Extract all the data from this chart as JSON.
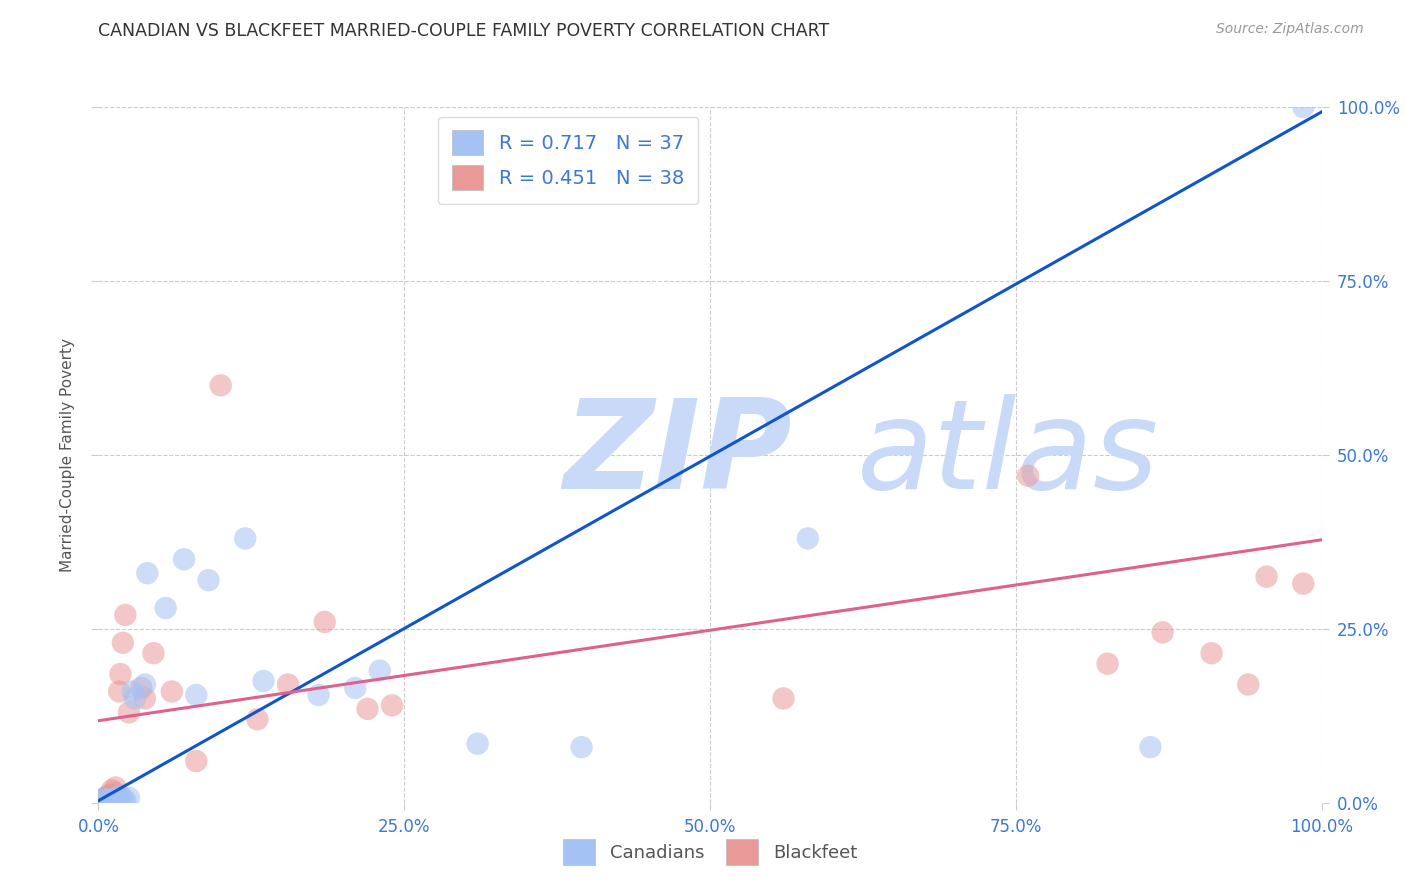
{
  "title": "CANADIAN VS BLACKFEET MARRIED-COUPLE FAMILY POVERTY CORRELATION CHART",
  "source": "Source: ZipAtlas.com",
  "ylabel": "Married-Couple Family Poverty",
  "xlim": [
    0,
    1
  ],
  "ylim": [
    0,
    1
  ],
  "xtick_vals": [
    0,
    0.25,
    0.5,
    0.75,
    1.0
  ],
  "xtick_labels": [
    "0.0%",
    "25.0%",
    "50.0%",
    "75.0%",
    "100.0%"
  ],
  "ytick_vals": [
    0,
    0.25,
    0.5,
    0.75,
    1.0
  ],
  "right_ytick_labels": [
    "0.0%",
    "25.0%",
    "50.0%",
    "75.0%",
    "100.0%"
  ],
  "canadian_color": "#a4c2f4",
  "blackfeet_color": "#ea9999",
  "canadian_line_color": "#1155cc",
  "blackfeet_line_color": "#e06090",
  "legend_R_canadian": "0.717",
  "legend_N_canadian": "37",
  "legend_R_blackfeet": "0.451",
  "legend_N_blackfeet": "38",
  "watermark_zip": "ZIP",
  "watermark_atlas": "atlas",
  "watermark_color": "#c9daf8",
  "background_color": "#ffffff",
  "grid_color": "#cccccc",
  "canadian_x": [
    0.003,
    0.004,
    0.005,
    0.006,
    0.007,
    0.008,
    0.009,
    0.01,
    0.011,
    0.012,
    0.013,
    0.014,
    0.015,
    0.016,
    0.017,
    0.018,
    0.02,
    0.022,
    0.025,
    0.028,
    0.03,
    0.038,
    0.04,
    0.055,
    0.07,
    0.08,
    0.09,
    0.12,
    0.135,
    0.18,
    0.21,
    0.23,
    0.31,
    0.395,
    0.58,
    0.86,
    0.985
  ],
  "canadian_y": [
    0.005,
    0.002,
    0.002,
    0.005,
    0.003,
    0.002,
    0.005,
    0.003,
    0.002,
    0.005,
    0.003,
    0.002,
    0.005,
    0.008,
    0.005,
    0.01,
    0.005,
    0.003,
    0.007,
    0.16,
    0.15,
    0.17,
    0.33,
    0.28,
    0.35,
    0.155,
    0.32,
    0.38,
    0.175,
    0.155,
    0.165,
    0.19,
    0.085,
    0.08,
    0.38,
    0.08,
    1.0
  ],
  "blackfeet_x": [
    0.003,
    0.004,
    0.005,
    0.006,
    0.007,
    0.008,
    0.009,
    0.01,
    0.011,
    0.012,
    0.013,
    0.014,
    0.015,
    0.016,
    0.017,
    0.018,
    0.02,
    0.022,
    0.025,
    0.035,
    0.038,
    0.045,
    0.06,
    0.08,
    0.1,
    0.13,
    0.155,
    0.185,
    0.22,
    0.24,
    0.56,
    0.76,
    0.825,
    0.87,
    0.91,
    0.94,
    0.955,
    0.985
  ],
  "blackfeet_y": [
    0.002,
    0.005,
    0.002,
    0.008,
    0.005,
    0.01,
    0.005,
    0.012,
    0.018,
    0.01,
    0.015,
    0.022,
    0.01,
    0.005,
    0.16,
    0.185,
    0.23,
    0.27,
    0.13,
    0.165,
    0.15,
    0.215,
    0.16,
    0.06,
    0.6,
    0.12,
    0.17,
    0.26,
    0.135,
    0.14,
    0.15,
    0.47,
    0.2,
    0.245,
    0.215,
    0.17,
    0.325,
    0.315
  ],
  "canadian_reg_slope": 0.99,
  "canadian_reg_intercept": 0.003,
  "blackfeet_reg_slope": 0.26,
  "blackfeet_reg_intercept": 0.118
}
